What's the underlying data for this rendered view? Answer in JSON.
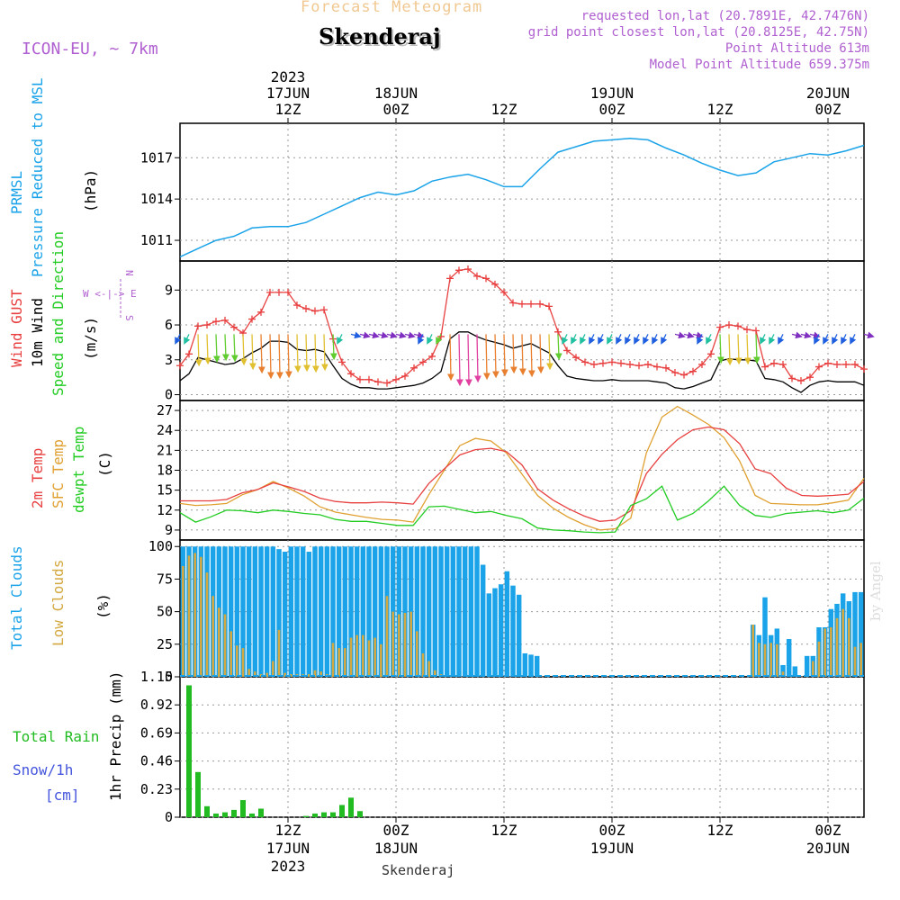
{
  "header": {
    "faded_title": "Forecast Meteogram",
    "location": "Skenderaj",
    "model": "ICON-EU, ~ 7km",
    "requested": "requested lon,lat (20.7891E, 42.7476N)",
    "gridpoint": "grid point closest lon,lat (20.8125E, 42.75N)",
    "point_alt": "Point Altitude 613m",
    "model_alt": "Model Point Altitude 659.375m",
    "watermark": "by Angel",
    "footer_location": "Skenderaj"
  },
  "time_axis": {
    "top_labels": [
      {
        "h": 12,
        "lines": [
          "2023",
          "17JUN",
          "12Z"
        ]
      },
      {
        "h": 24,
        "lines": [
          "18JUN",
          "00Z"
        ]
      },
      {
        "h": 36,
        "lines": [
          "12Z"
        ]
      },
      {
        "h": 48,
        "lines": [
          "19JUN",
          "00Z"
        ]
      },
      {
        "h": 60,
        "lines": [
          "12Z"
        ]
      },
      {
        "h": 72,
        "lines": [
          "20JUN",
          "00Z"
        ]
      }
    ],
    "bottom_labels": [
      {
        "h": 12,
        "lines": [
          "12Z",
          "17JUN",
          "2023"
        ]
      },
      {
        "h": 24,
        "lines": [
          "00Z",
          "18JUN"
        ]
      },
      {
        "h": 36,
        "lines": [
          "12Z"
        ]
      },
      {
        "h": 48,
        "lines": [
          "00Z",
          "19JUN"
        ]
      },
      {
        "h": 60,
        "lines": [
          "12Z"
        ]
      },
      {
        "h": 72,
        "lines": [
          "00Z",
          "20JUN"
        ]
      }
    ]
  },
  "legend": {
    "pressure": {
      "a": "PRMSL",
      "b": "Pressure Reduced to MSL",
      "unit": "(hPa)"
    },
    "wind": {
      "gust": "Wind GUST",
      "wind10": "10m Wind",
      "speed": "Speed and Direction",
      "unit": "(m/s)",
      "compass_we": "W <-|-> E",
      "compass_n": "N",
      "compass_s": "S"
    },
    "temp": {
      "t2m": "2m Temp",
      "sfc": "SFC Temp",
      "dew": "dewpt Temp",
      "unit": "(C)"
    },
    "clouds": {
      "total": "Total Clouds",
      "low": "Low Clouds",
      "unit": "(%)"
    },
    "precip": {
      "rain": "Total Rain",
      "snow": "Snow/1h",
      "cm": "[cm]",
      "unit": "1hr Precip (mm)"
    }
  },
  "colors": {
    "pressure": "#1aa3e8",
    "gust": "#e84040",
    "wind": "#000000",
    "t2m": "#e84040",
    "sfc": "#e0a030",
    "dew": "#22cc22",
    "total_clouds": "#1aa3e8",
    "low_clouds": "#d4a840",
    "rain": "#22bb22",
    "snow": "#4455dd",
    "header_purple": "#b060d0",
    "faded": "#f0c890"
  },
  "chart_data": [
    {
      "type": "line",
      "name": "PRMSL",
      "xlabel": "",
      "ylabel": "(hPa)",
      "ylim": [
        1009.5,
        1019.5
      ],
      "yticks": [
        1011,
        1014,
        1017
      ],
      "x": [
        0,
        2,
        4,
        6,
        8,
        10,
        12,
        14,
        16,
        18,
        20,
        22,
        24,
        26,
        28,
        30,
        32,
        34,
        36,
        38,
        40,
        42,
        44,
        46,
        48,
        50,
        52,
        54,
        56,
        58,
        60,
        62,
        64,
        66,
        68,
        70,
        72,
        74,
        76
      ],
      "values": [
        1009.8,
        1010.4,
        1011.0,
        1011.3,
        1011.9,
        1012.0,
        1012.0,
        1012.3,
        1012.9,
        1013.5,
        1014.1,
        1014.5,
        1014.3,
        1014.6,
        1015.3,
        1015.6,
        1015.8,
        1015.4,
        1014.9,
        1014.9,
        1016.2,
        1017.4,
        1017.8,
        1018.2,
        1018.3,
        1018.4,
        1018.3,
        1017.7,
        1017.2,
        1016.6,
        1016.1,
        1015.7,
        1015.9,
        1016.7,
        1017.0,
        1017.3,
        1017.2,
        1017.5,
        1017.9
      ]
    },
    {
      "type": "line",
      "name": "Wind",
      "ylabel": "(m/s)",
      "ylim": [
        -0.5,
        11.5
      ],
      "yticks": [
        0,
        3,
        6,
        9
      ],
      "x": [
        0,
        1,
        2,
        3,
        4,
        5,
        6,
        7,
        8,
        9,
        10,
        11,
        12,
        13,
        14,
        15,
        16,
        17,
        18,
        19,
        20,
        21,
        22,
        23,
        24,
        25,
        26,
        27,
        28,
        29,
        30,
        31,
        32,
        33,
        34,
        35,
        36,
        37,
        38,
        39,
        40,
        41,
        42,
        43,
        44,
        45,
        46,
        47,
        48,
        49,
        50,
        51,
        52,
        53,
        54,
        55,
        56,
        57,
        58,
        59,
        60,
        61,
        62,
        63,
        64,
        65,
        66,
        67,
        68,
        69,
        70,
        71,
        72,
        73,
        74,
        75,
        76
      ],
      "gust": [
        2.5,
        3.5,
        5.9,
        6.0,
        6.3,
        6.4,
        5.8,
        5.3,
        6.5,
        7.1,
        8.8,
        8.8,
        8.8,
        7.7,
        7.4,
        7.2,
        7.3,
        4.8,
        2.8,
        1.8,
        1.3,
        1.3,
        1.1,
        1.0,
        1.3,
        1.6,
        2.3,
        2.8,
        3.3,
        5.0,
        10.0,
        10.7,
        10.8,
        10.2,
        10.0,
        9.5,
        8.8,
        7.9,
        7.8,
        7.8,
        7.8,
        7.6,
        5.4,
        3.8,
        3.2,
        2.8,
        2.6,
        2.7,
        2.8,
        2.7,
        2.6,
        2.5,
        2.6,
        2.4,
        2.3,
        1.9,
        1.7,
        2.0,
        2.6,
        3.5,
        5.8,
        6.0,
        5.9,
        5.6,
        5.5,
        2.4,
        2.7,
        2.6,
        1.4,
        1.2,
        1.5,
        2.4,
        2.7,
        2.6,
        2.6,
        2.6,
        2.2
      ],
      "wind10": [
        1.2,
        1.8,
        3.2,
        3.0,
        2.8,
        2.6,
        2.7,
        3.1,
        3.6,
        4.0,
        4.6,
        4.6,
        4.5,
        3.9,
        3.8,
        3.9,
        3.7,
        2.5,
        1.4,
        0.9,
        0.6,
        0.6,
        0.5,
        0.5,
        0.6,
        0.7,
        0.8,
        1.0,
        1.4,
        2.0,
        4.8,
        5.4,
        5.4,
        5.0,
        4.7,
        4.5,
        4.3,
        4.0,
        4.2,
        4.4,
        4.0,
        3.6,
        2.5,
        1.6,
        1.4,
        1.3,
        1.2,
        1.2,
        1.3,
        1.2,
        1.2,
        1.2,
        1.2,
        1.1,
        1.0,
        0.6,
        0.5,
        0.7,
        1.0,
        1.3,
        2.9,
        3.1,
        3.0,
        3.0,
        2.9,
        1.4,
        1.3,
        1.1,
        0.6,
        0.2,
        0.8,
        1.1,
        1.2,
        1.1,
        1.1,
        1.1,
        0.8
      ],
      "direction_note": "arrows along ~y=5 from NW/N; color by speed"
    },
    {
      "type": "line",
      "name": "Temperature",
      "ylabel": "(C)",
      "ylim": [
        7.5,
        28.5
      ],
      "yticks": [
        9,
        12,
        15,
        18,
        21,
        24,
        27
      ],
      "x": [
        0,
        2,
        4,
        6,
        8,
        10,
        12,
        14,
        16,
        18,
        20,
        22,
        24,
        26,
        28,
        30,
        32,
        34,
        36,
        38,
        40,
        42,
        44,
        46,
        48,
        50,
        52,
        54,
        56,
        58,
        60,
        62,
        64,
        66,
        68,
        70,
        72,
        74,
        76
      ],
      "t2m": [
        13.4,
        13.4,
        13.4,
        13.6,
        14.6,
        15.1,
        16.1,
        15.5,
        14.8,
        13.8,
        13.3,
        13.1,
        13.1,
        13.2,
        13.1,
        12.9,
        16.0,
        18.2,
        20.3,
        21.1,
        21.3,
        20.8,
        18.8,
        15.2,
        13.5,
        12.2,
        11.1,
        10.3,
        10.5,
        11.9,
        17.5,
        20.4,
        22.6,
        24.1,
        24.5,
        24.1,
        22.0,
        18.2,
        17.5,
        15.3,
        14.2,
        14.1,
        14.2,
        14.4,
        16.3
      ],
      "sfc": [
        13.0,
        12.7,
        12.8,
        13.0,
        14.3,
        15.1,
        16.3,
        15.3,
        14.1,
        12.5,
        11.7,
        11.3,
        10.9,
        10.6,
        10.5,
        10.2,
        14.3,
        18.0,
        21.7,
        22.8,
        22.4,
        20.6,
        17.4,
        14.2,
        12.3,
        10.9,
        9.8,
        9.0,
        9.2,
        10.8,
        20.6,
        26.0,
        27.6,
        26.3,
        24.9,
        22.9,
        19.4,
        14.2,
        13.0,
        12.9,
        12.8,
        12.8,
        13.1,
        13.5,
        16.8
      ],
      "dew": [
        11.6,
        10.2,
        11.0,
        12.0,
        11.9,
        11.6,
        12.0,
        11.8,
        11.5,
        11.3,
        10.6,
        10.3,
        10.3,
        10.0,
        9.7,
        9.7,
        12.5,
        12.6,
        12.1,
        11.6,
        11.8,
        11.2,
        10.7,
        9.3,
        9.0,
        8.9,
        8.7,
        8.6,
        8.7,
        12.7,
        13.7,
        15.6,
        10.5,
        11.5,
        13.4,
        15.6,
        12.7,
        11.2,
        10.9,
        11.5,
        11.7,
        11.9,
        11.6,
        12.0,
        13.8
      ]
    },
    {
      "type": "bar",
      "name": "Clouds",
      "ylabel": "(%)",
      "ylim": [
        0,
        105
      ],
      "yticks": [
        0,
        25,
        50,
        75,
        100
      ],
      "x_start": 0,
      "x_step": 1,
      "total": [
        100,
        100,
        100,
        100,
        100,
        100,
        100,
        100,
        100,
        100,
        100,
        100,
        100,
        100,
        100,
        100,
        98,
        96,
        100,
        100,
        100,
        96,
        100,
        100,
        100,
        100,
        100,
        100,
        100,
        100,
        100,
        100,
        100,
        100,
        100,
        100,
        100,
        100,
        100,
        100,
        100,
        100,
        100,
        100,
        100,
        100,
        100,
        100,
        100,
        100,
        86,
        64,
        68,
        71,
        81,
        70,
        63,
        18,
        17,
        16,
        0,
        0,
        0,
        0,
        0,
        0,
        0,
        0,
        0,
        0,
        0,
        0,
        0,
        0,
        0,
        0,
        0,
        0,
        0,
        0,
        0,
        0,
        0,
        0,
        0,
        0,
        0,
        0,
        0,
        0,
        0,
        0,
        0,
        0,
        0,
        40,
        32,
        61,
        32,
        37,
        9,
        29,
        8,
        0,
        16,
        16,
        38,
        38,
        52,
        56,
        64,
        58,
        65,
        65
      ],
      "low": [
        85,
        93,
        95,
        92,
        80,
        62,
        53,
        48,
        35,
        24,
        22,
        6,
        4,
        2,
        3,
        12,
        36,
        3,
        2,
        2,
        2,
        2,
        5,
        4,
        2,
        26,
        22,
        22,
        30,
        32,
        32,
        28,
        30,
        25,
        62,
        50,
        48,
        49,
        50,
        35,
        18,
        12,
        5,
        2,
        0,
        0,
        0,
        0,
        0,
        0,
        0,
        0,
        0,
        0,
        0,
        0,
        0,
        0,
        0,
        0,
        0,
        0,
        0,
        0,
        0,
        0,
        0,
        0,
        0,
        0,
        0,
        0,
        0,
        0,
        0,
        0,
        0,
        0,
        0,
        0,
        0,
        0,
        0,
        0,
        0,
        0,
        0,
        0,
        0,
        0,
        0,
        0,
        0,
        0,
        0,
        40,
        26,
        25,
        26,
        25,
        4,
        0,
        0,
        0,
        0,
        12,
        27,
        37,
        38,
        45,
        52,
        45,
        23,
        26
      ]
    },
    {
      "type": "bar",
      "name": "1hr Precip",
      "ylabel": "1hr Precip (mm)",
      "ylim": [
        0,
        1.15
      ],
      "yticks": [
        0,
        0.23,
        0.46,
        0.69,
        0.92,
        1.15
      ],
      "x": [
        1,
        2,
        3,
        4,
        5,
        6,
        7,
        8,
        9,
        10,
        11,
        12,
        13,
        14,
        15,
        16,
        17,
        18,
        19,
        20,
        21,
        22,
        23
      ],
      "values": [
        1.08,
        0.37,
        0.09,
        0.03,
        0.04,
        0.06,
        0.14,
        0.03,
        0.07,
        0.0,
        0.0,
        0.0,
        0.0,
        0.01,
        0.03,
        0.04,
        0.04,
        0.1,
        0.16,
        0.05,
        0.0,
        0.0,
        0.0
      ]
    }
  ]
}
